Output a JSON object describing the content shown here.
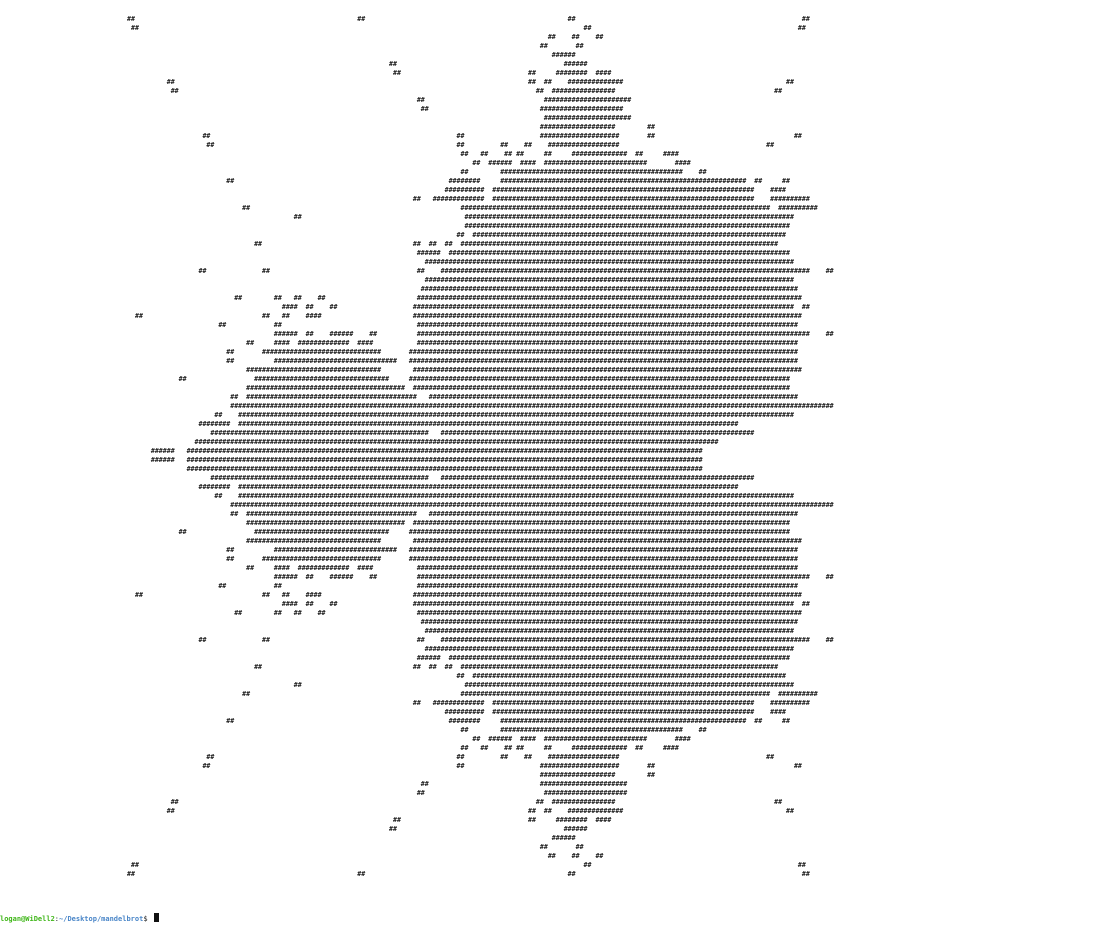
{
  "terminal": {
    "art_lines": [
      "                                ##                                                        ##                                                   ##                                                         ##",
      "                                 ##                                                                                                                ##                                                    ##",
      "                                                                                                                                          ##    ##    ##",
      "                                                                                                                                        ##       ##",
      "                                                                                                                                           ######",
      "                                                                                                  ##                                          ######",
      "                                                                                                   ##                                ##     ########  ####",
      "                                          ##                                                                                         ##  ##    ##############                                         ##",
      "                                           ##                                                                                          ##  ################                                        ##",
      "                                                                                                         ##                              ######################",
      "                                                                                                          ##                            #####################",
      "                                                                                                                                         ######################",
      "                                                                                                                                        ###################        ##",
      "                                                   ##                                                              ##                   ####################       ##                                   ##",
      "                                                    ##                                                             ##         ##    ##    ##################                                     ##",
      "                                                                                                                    ##   ##    ## ##     ##     ##############  ##     ####",
      "                                                                                                                       ##  ######  ####  ##########################       ####",
      "                                                                                                                    ##        ##############################################    ##",
      "                                                         ##                                                      ########     ##############################################################  ##     ##",
      "                                                                                                                ##########  ##################################################################    ####",
      "                                                                                                        ##   #############  ##################################################################    ##########",
      "                                                             ##                                                     ##############################################################################  ##########",
      "                                                                          ##                                         ###################################################################################",
      "                                                                                                                     ##################################################################################",
      "                                                                                                                   ##  ###############################################################################",
      "                                                                ##                                      ##  ##  ##  ################################################################################",
      "                                                                                                         ######  ######################################################################################",
      "                                                                                                           #############################################################################################",
      "                                                  ##              ##                                     ##    #############################################################################################    ##",
      "                                                                                                           #############################################################################################",
      "                                                                                                          ###############################################################################################",
      "                                                           ##        ##   ##    ##                       #################################################################################################",
      "                                                                       ####  ##    ##                   ################################################################################################  ##",
      "                                  ##                              ##   ##    ####                       ##################################################################################################",
      "                                                       ##            ##                                  ################################################################################################",
      "                                                                     ######  ##    ######    ##          ###################################################################################################    ##",
      "                                                              ##     ####  #############  ####           ################################################################################################",
      "                                                         ##       ##############################       ##################################################################################################",
      "                                                         ##          ###############################   ##################################################################################################",
      "                                                              ##################################        ##################################################################################################",
      "                                             ##                 ##################################     ################################################################################################",
      "                                                              ########################################  ###############################################################################################",
      "                                                          ##  ###########################################   #############################################################################################",
      "                                                          ########################################################################################################################################################",
      "                                                      ##    ############################################################################################################################################",
      "                                                  ########  ##############################################################################################################################",
      "                                                     #######################################################   ###############################################################################",
      "                                                 ####################################################################################################################################",
      "                                      ######   ##################################################################################################################################",
      "                                      ######   ##################################################################################################################################",
      "                                               ##################################################################################################################################",
      "                                                     #######################################################   ###############################################################################",
      "                                                  ########  ##############################################################################################################################",
      "                                                      ##    ############################################################################################################################################",
      "                                                          ########################################################################################################################################################",
      "                                                          ##  ###########################################   #############################################################################################",
      "                                                              ########################################  ###############################################################################################",
      "                                             ##                 ##################################     ################################################################################################",
      "                                                              ##################################        ##################################################################################################",
      "                                                         ##          ###############################   ##################################################################################################",
      "                                                         ##       ##############################       ##################################################################################################",
      "                                                              ##     ####  #############  ####           ################################################################################################",
      "                                                                     ######  ##    ######    ##          ###################################################################################################    ##",
      "                                                       ##            ##                                  ################################################################################################",
      "                                  ##                              ##   ##    ####                       ##################################################################################################",
      "                                                                       ####  ##    ##                   ################################################################################################  ##",
      "                                                           ##        ##   ##    ##                       #################################################################################################",
      "                                                                                                          ###############################################################################################",
      "                                                                                                           #############################################################################################",
      "                                                  ##              ##                                     ##    #############################################################################################    ##",
      "                                                                                                           #############################################################################################",
      "                                                                                                         ######  ######################################################################################",
      "                                                                ##                                      ##  ##  ##  ################################################################################",
      "                                                                                                                   ##  ###############################################################################",
      "                                                                          ##                                         ###################################################################################",
      "                                                             ##                                                     ##############################################################################  ##########",
      "                                                                                                        ##   #############  ##################################################################    ##########",
      "                                                                                                                ##########  ##################################################################    ####",
      "                                                         ##                                                      ########     ##############################################################  ##     ##",
      "                                                                                                                    ##        ##############################################    ##",
      "                                                                                                                       ##  ######  ####  ##########################       ####",
      "                                                                                                                    ##   ##    ## ##     ##     ##############  ##     ####",
      "                                                    ##                                                             ##         ##    ##    ##################                                     ##",
      "                                                   ##                                                              ##                   ####################       ##                                   ##",
      "                                                                                                                                        ###################        ##",
      "                                                                                                          ##                            ######################",
      "                                                                                                         ##                              #####################",
      "                                           ##                                                                                          ##  ################                                        ##",
      "                                          ##                                                                                         ##  ##    ##############                                         ##",
      "                                                                                                   ##                                ##     ########  ####",
      "                                                                                                  ##                                          ######",
      "                                                                                                                                           ######",
      "                                                                                                                                        ##       ##",
      "                                                                                                                                          ##    ##    ##",
      "                                 ##                                                                                                                ##                                                    ##",
      "                                ##                                                        ##                                                   ##                                                         ##"
    ],
    "prompt": {
      "user_host": "logan@WiDell2",
      "separator": ":",
      "path": "~/Desktop/mandelbrot",
      "symbol": "$ "
    }
  }
}
